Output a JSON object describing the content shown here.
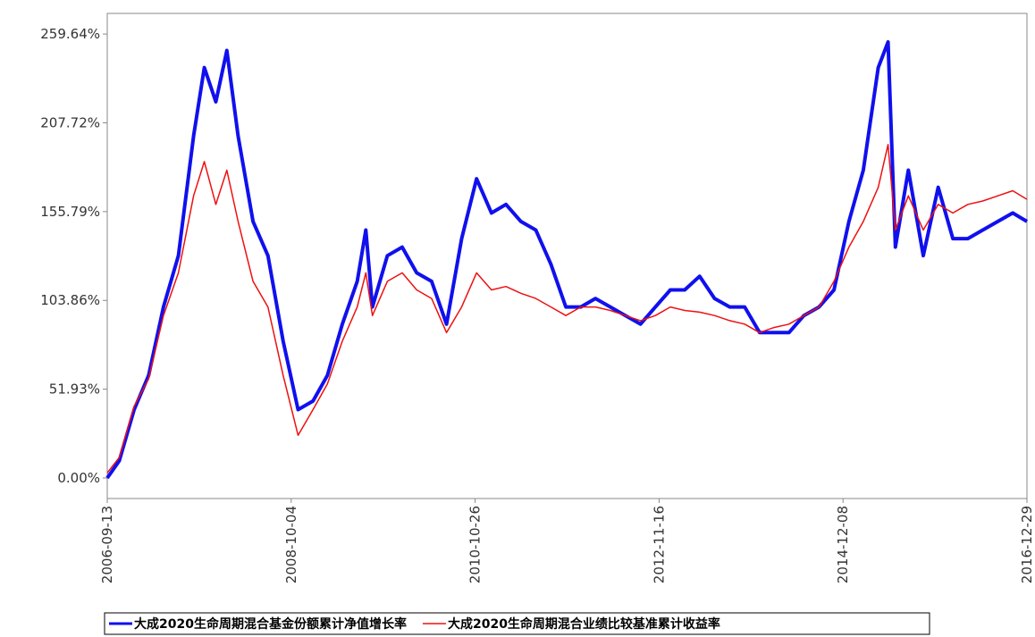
{
  "chart_data": {
    "type": "line",
    "x": [
      "2006-09-13",
      "2006-11-01",
      "2007-01-01",
      "2007-03-01",
      "2007-05-01",
      "2007-07-01",
      "2007-09-01",
      "2007-10-15",
      "2007-12-01",
      "2008-01-15",
      "2008-03-01",
      "2008-05-01",
      "2008-07-01",
      "2008-09-01",
      "2008-11-01",
      "2009-01-01",
      "2009-03-01",
      "2009-05-01",
      "2009-07-01",
      "2009-08-05",
      "2009-09-01",
      "2009-11-01",
      "2010-01-01",
      "2010-03-01",
      "2010-05-01",
      "2010-07-01",
      "2010-09-01",
      "2010-11-01",
      "2011-01-01",
      "2011-03-01",
      "2011-05-01",
      "2011-07-01",
      "2011-09-01",
      "2011-11-01",
      "2012-01-01",
      "2012-03-01",
      "2012-05-01",
      "2012-07-01",
      "2012-09-01",
      "2012-11-01",
      "2013-01-01",
      "2013-03-01",
      "2013-05-01",
      "2013-07-01",
      "2013-09-01",
      "2013-11-01",
      "2014-01-01",
      "2014-03-01",
      "2014-05-01",
      "2014-07-01",
      "2014-09-01",
      "2014-11-01",
      "2015-01-01",
      "2015-03-01",
      "2015-05-01",
      "2015-06-10",
      "2015-07-10",
      "2015-09-01",
      "2015-11-01",
      "2016-01-01",
      "2016-03-01",
      "2016-05-01",
      "2016-07-01",
      "2016-09-01",
      "2016-11-01",
      "2016-12-29"
    ],
    "series": [
      {
        "name": "大成2020生命周期混合基金份额累计净值增长率",
        "color": "#1010ee",
        "values": [
          0,
          10,
          40,
          60,
          100,
          130,
          200,
          240,
          220,
          250,
          200,
          150,
          130,
          80,
          40,
          45,
          60,
          90,
          115,
          145,
          100,
          130,
          135,
          120,
          115,
          90,
          140,
          175,
          155,
          160,
          150,
          145,
          125,
          100,
          100,
          105,
          100,
          95,
          90,
          100,
          110,
          110,
          118,
          105,
          100,
          100,
          85,
          85,
          85,
          95,
          100,
          110,
          150,
          180,
          240,
          255,
          135,
          180,
          130,
          170,
          140,
          140,
          145,
          150,
          155,
          150
        ]
      },
      {
        "name": "大成2020生命周期混合业绩比较基准累计收益率",
        "color": "#ee1010",
        "values": [
          3,
          12,
          42,
          58,
          95,
          120,
          165,
          185,
          160,
          180,
          150,
          115,
          100,
          60,
          25,
          40,
          55,
          80,
          100,
          120,
          95,
          115,
          120,
          110,
          105,
          85,
          100,
          120,
          110,
          112,
          108,
          105,
          100,
          95,
          100,
          100,
          98,
          95,
          92,
          95,
          100,
          98,
          97,
          95,
          92,
          90,
          85,
          88,
          90,
          95,
          100,
          115,
          135,
          150,
          170,
          195,
          145,
          165,
          145,
          160,
          155,
          160,
          162,
          165,
          168,
          163
        ]
      }
    ],
    "xlim": [
      "2006-09-13",
      "2016-12-29"
    ],
    "xticks": [
      "2006-09-13",
      "2008-10-04",
      "2010-10-26",
      "2012-11-16",
      "2014-12-08",
      "2016-12-29"
    ],
    "ylim": [
      -12,
      271.7
    ],
    "yticks": [
      {
        "value": 0,
        "label": "0.00%"
      },
      {
        "value": 51.93,
        "label": "51.93%"
      },
      {
        "value": 103.86,
        "label": "103.86%"
      },
      {
        "value": 155.79,
        "label": "155.79%"
      },
      {
        "value": 207.72,
        "label": "207.72%"
      },
      {
        "value": 259.64,
        "label": "259.64%"
      }
    ]
  }
}
